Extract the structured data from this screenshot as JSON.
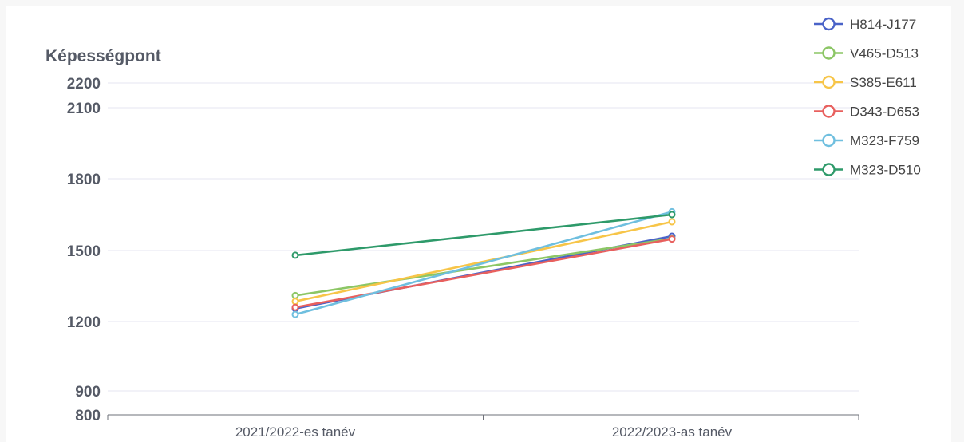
{
  "chart_data": {
    "type": "line",
    "ylabel": "Képességpont",
    "categories": [
      "2021/2022-es tanév",
      "2022/2023-as tanév"
    ],
    "yticks": [
      800,
      900,
      1200,
      1500,
      1800,
      2100,
      2200
    ],
    "ylim": [
      800,
      2200
    ],
    "grid": true,
    "legend_position": "top-right",
    "series": [
      {
        "name": "H814-J177",
        "color": "#4a63c8",
        "values": [
          1255,
          1560
        ]
      },
      {
        "name": "V465-D513",
        "color": "#8cc665",
        "values": [
          1310,
          1550
        ]
      },
      {
        "name": "S385-E611",
        "color": "#f7c548",
        "values": [
          1285,
          1620
        ]
      },
      {
        "name": "D343-D653",
        "color": "#e8605e",
        "values": [
          1260,
          1548
        ]
      },
      {
        "name": "M323-F759",
        "color": "#6fbfdf",
        "values": [
          1230,
          1662
        ]
      },
      {
        "name": "M323-D510",
        "color": "#2e9a6a",
        "values": [
          1480,
          1650
        ]
      }
    ]
  }
}
